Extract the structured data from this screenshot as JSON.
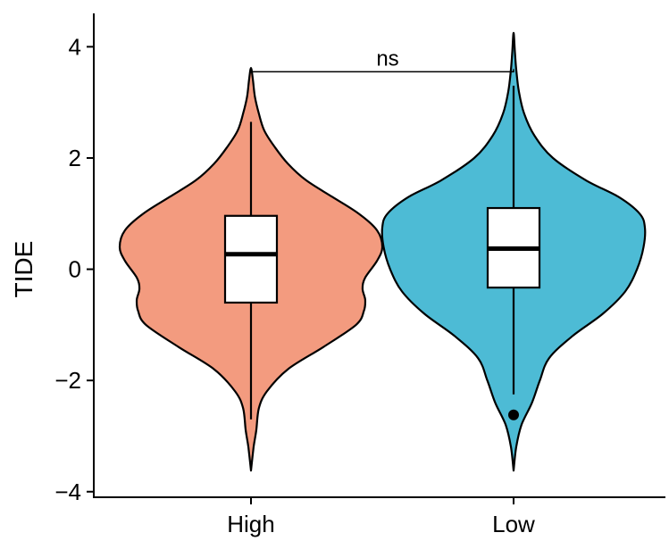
{
  "chart_data": {
    "type": "violin",
    "title": "",
    "xlabel": "",
    "ylabel": "TIDE",
    "ylim": [
      -4.1,
      4.6
    ],
    "yticks": [
      -4,
      -2,
      0,
      2,
      4
    ],
    "ytick_labels": [
      "−4",
      "−2",
      "0",
      "2",
      "4"
    ],
    "categories": [
      "High",
      "Low"
    ],
    "groups": [
      {
        "label": "High",
        "color": "#F39B7F",
        "box": {
          "q1": -0.6,
          "median": 0.27,
          "q3": 0.96,
          "whisker_low": -2.7,
          "whisker_high": 2.65
        },
        "outliers": [],
        "density": [
          [
            -3.62,
            0.0
          ],
          [
            -3.2,
            0.02
          ],
          [
            -2.9,
            0.04
          ],
          [
            -2.5,
            0.06
          ],
          [
            -2.2,
            0.12
          ],
          [
            -1.8,
            0.28
          ],
          [
            -1.4,
            0.55
          ],
          [
            -1.0,
            0.8
          ],
          [
            -0.75,
            0.86
          ],
          [
            -0.55,
            0.87
          ],
          [
            -0.35,
            0.85
          ],
          [
            -0.15,
            0.87
          ],
          [
            0.15,
            0.96
          ],
          [
            0.4,
            1.0
          ],
          [
            0.7,
            0.96
          ],
          [
            1.0,
            0.82
          ],
          [
            1.3,
            0.62
          ],
          [
            1.6,
            0.42
          ],
          [
            1.9,
            0.28
          ],
          [
            2.2,
            0.18
          ],
          [
            2.5,
            0.1
          ],
          [
            2.8,
            0.06
          ],
          [
            3.1,
            0.03
          ],
          [
            3.4,
            0.015
          ],
          [
            3.62,
            0.0
          ]
        ]
      },
      {
        "label": "Low",
        "color": "#4DBBD5",
        "box": {
          "q1": -0.33,
          "median": 0.37,
          "q3": 1.1,
          "whisker_low": -2.25,
          "whisker_high": 3.3
        },
        "outliers": [
          -2.62
        ],
        "density": [
          [
            -3.62,
            0.0
          ],
          [
            -3.2,
            0.02
          ],
          [
            -2.8,
            0.06
          ],
          [
            -2.4,
            0.14
          ],
          [
            -2.0,
            0.2
          ],
          [
            -1.6,
            0.27
          ],
          [
            -1.2,
            0.45
          ],
          [
            -0.8,
            0.68
          ],
          [
            -0.4,
            0.85
          ],
          [
            0.0,
            0.94
          ],
          [
            0.4,
            0.99
          ],
          [
            0.75,
            1.0
          ],
          [
            1.0,
            0.96
          ],
          [
            1.3,
            0.8
          ],
          [
            1.6,
            0.55
          ],
          [
            2.0,
            0.3
          ],
          [
            2.4,
            0.16
          ],
          [
            2.8,
            0.08
          ],
          [
            3.2,
            0.04
          ],
          [
            3.6,
            0.02
          ],
          [
            3.9,
            0.01
          ],
          [
            4.25,
            0.0
          ]
        ]
      }
    ],
    "annotation": {
      "text": "ns",
      "y": 3.55,
      "from": "High",
      "to": "Low"
    }
  }
}
